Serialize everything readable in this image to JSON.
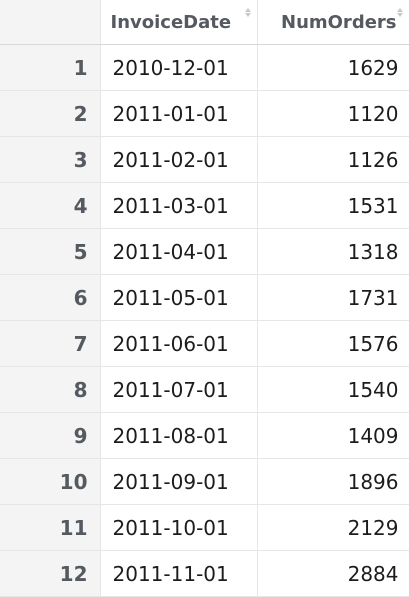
{
  "table": {
    "columns": [
      {
        "label": ""
      },
      {
        "label": "InvoiceDate"
      },
      {
        "label": "NumOrders"
      }
    ],
    "rows": [
      {
        "index": "1",
        "InvoiceDate": "2010-12-01",
        "NumOrders": "1629"
      },
      {
        "index": "2",
        "InvoiceDate": "2011-01-01",
        "NumOrders": "1120"
      },
      {
        "index": "3",
        "InvoiceDate": "2011-02-01",
        "NumOrders": "1126"
      },
      {
        "index": "4",
        "InvoiceDate": "2011-03-01",
        "NumOrders": "1531"
      },
      {
        "index": "5",
        "InvoiceDate": "2011-04-01",
        "NumOrders": "1318"
      },
      {
        "index": "6",
        "InvoiceDate": "2011-05-01",
        "NumOrders": "1731"
      },
      {
        "index": "7",
        "InvoiceDate": "2011-06-01",
        "NumOrders": "1576"
      },
      {
        "index": "8",
        "InvoiceDate": "2011-07-01",
        "NumOrders": "1540"
      },
      {
        "index": "9",
        "InvoiceDate": "2011-08-01",
        "NumOrders": "1409"
      },
      {
        "index": "10",
        "InvoiceDate": "2011-09-01",
        "NumOrders": "1896"
      },
      {
        "index": "11",
        "InvoiceDate": "2011-10-01",
        "NumOrders": "2129"
      },
      {
        "index": "12",
        "InvoiceDate": "2011-11-01",
        "NumOrders": "2884"
      }
    ]
  },
  "colors": {
    "header_text": "#555a60",
    "index_bg": "#f4f4f4",
    "grid_line": "#e6e6e6",
    "cell_text": "#1c1c1c"
  }
}
